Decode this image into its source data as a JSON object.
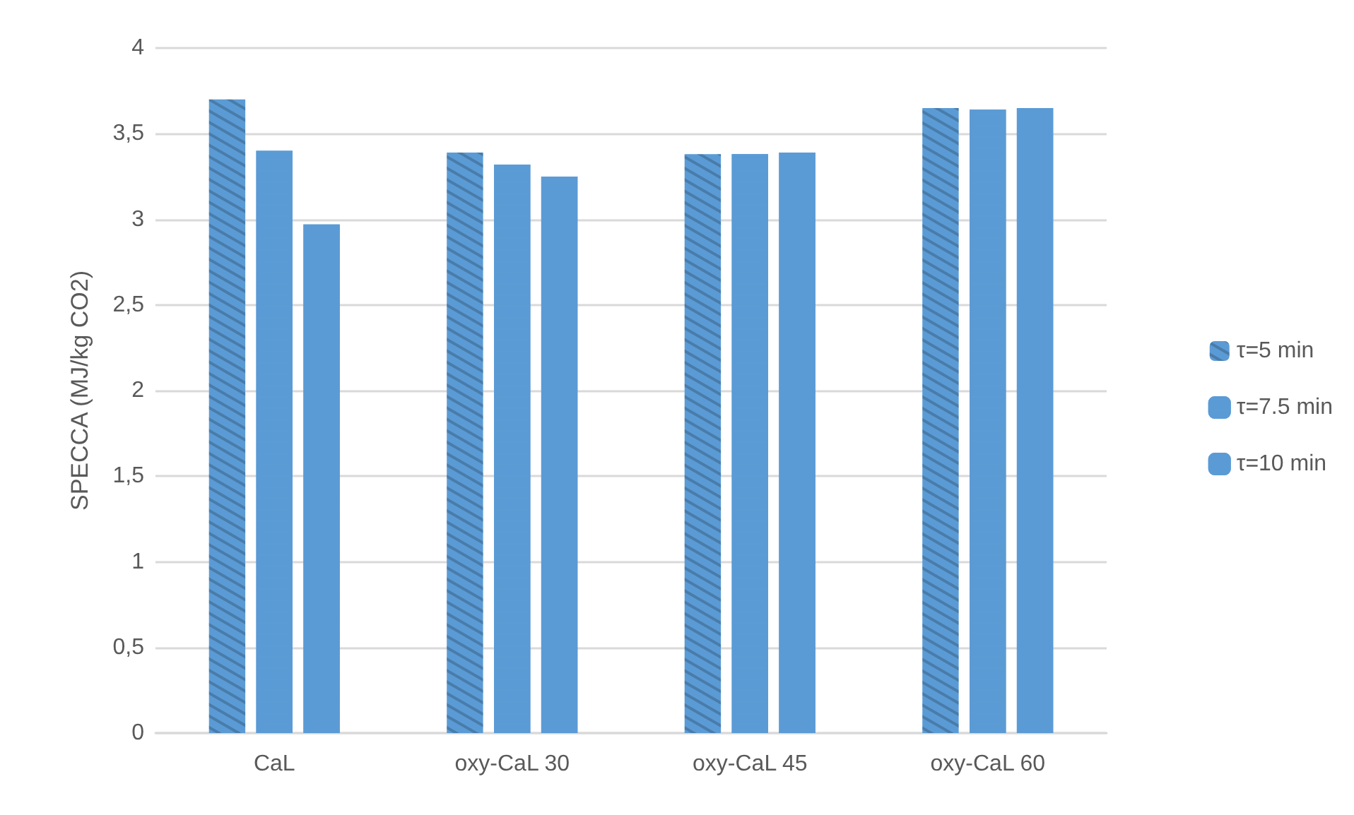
{
  "chart_data": {
    "type": "bar",
    "ylabel": "SPECCA (MJ/kg CO2)",
    "categories": [
      "CaL",
      "oxy-CaL 30",
      "oxy-CaL 45",
      "oxy-CaL 60"
    ],
    "series": [
      {
        "name": "τ=5 min",
        "color": "#5b9bd5",
        "values": [
          3.7,
          3.39,
          3.38,
          3.65
        ]
      },
      {
        "name": "τ=7.5 min",
        "color": "#5b9bd5",
        "values": [
          3.4,
          3.32,
          3.38,
          3.64
        ]
      },
      {
        "name": "τ=10 min",
        "color": "#5b9bd5",
        "values": [
          2.97,
          3.25,
          3.39,
          3.65
        ]
      }
    ],
    "ylim": [
      0,
      4
    ],
    "yticks": [
      0,
      {
        "value": 0.5,
        "label": "0,5"
      },
      1,
      {
        "value": 1.5,
        "label": "1,5"
      },
      2,
      {
        "value": 2.5,
        "label": "2,5"
      },
      3,
      {
        "value": 3.5,
        "label": "3,5"
      },
      4
    ],
    "grid": "y",
    "legend": "right"
  }
}
